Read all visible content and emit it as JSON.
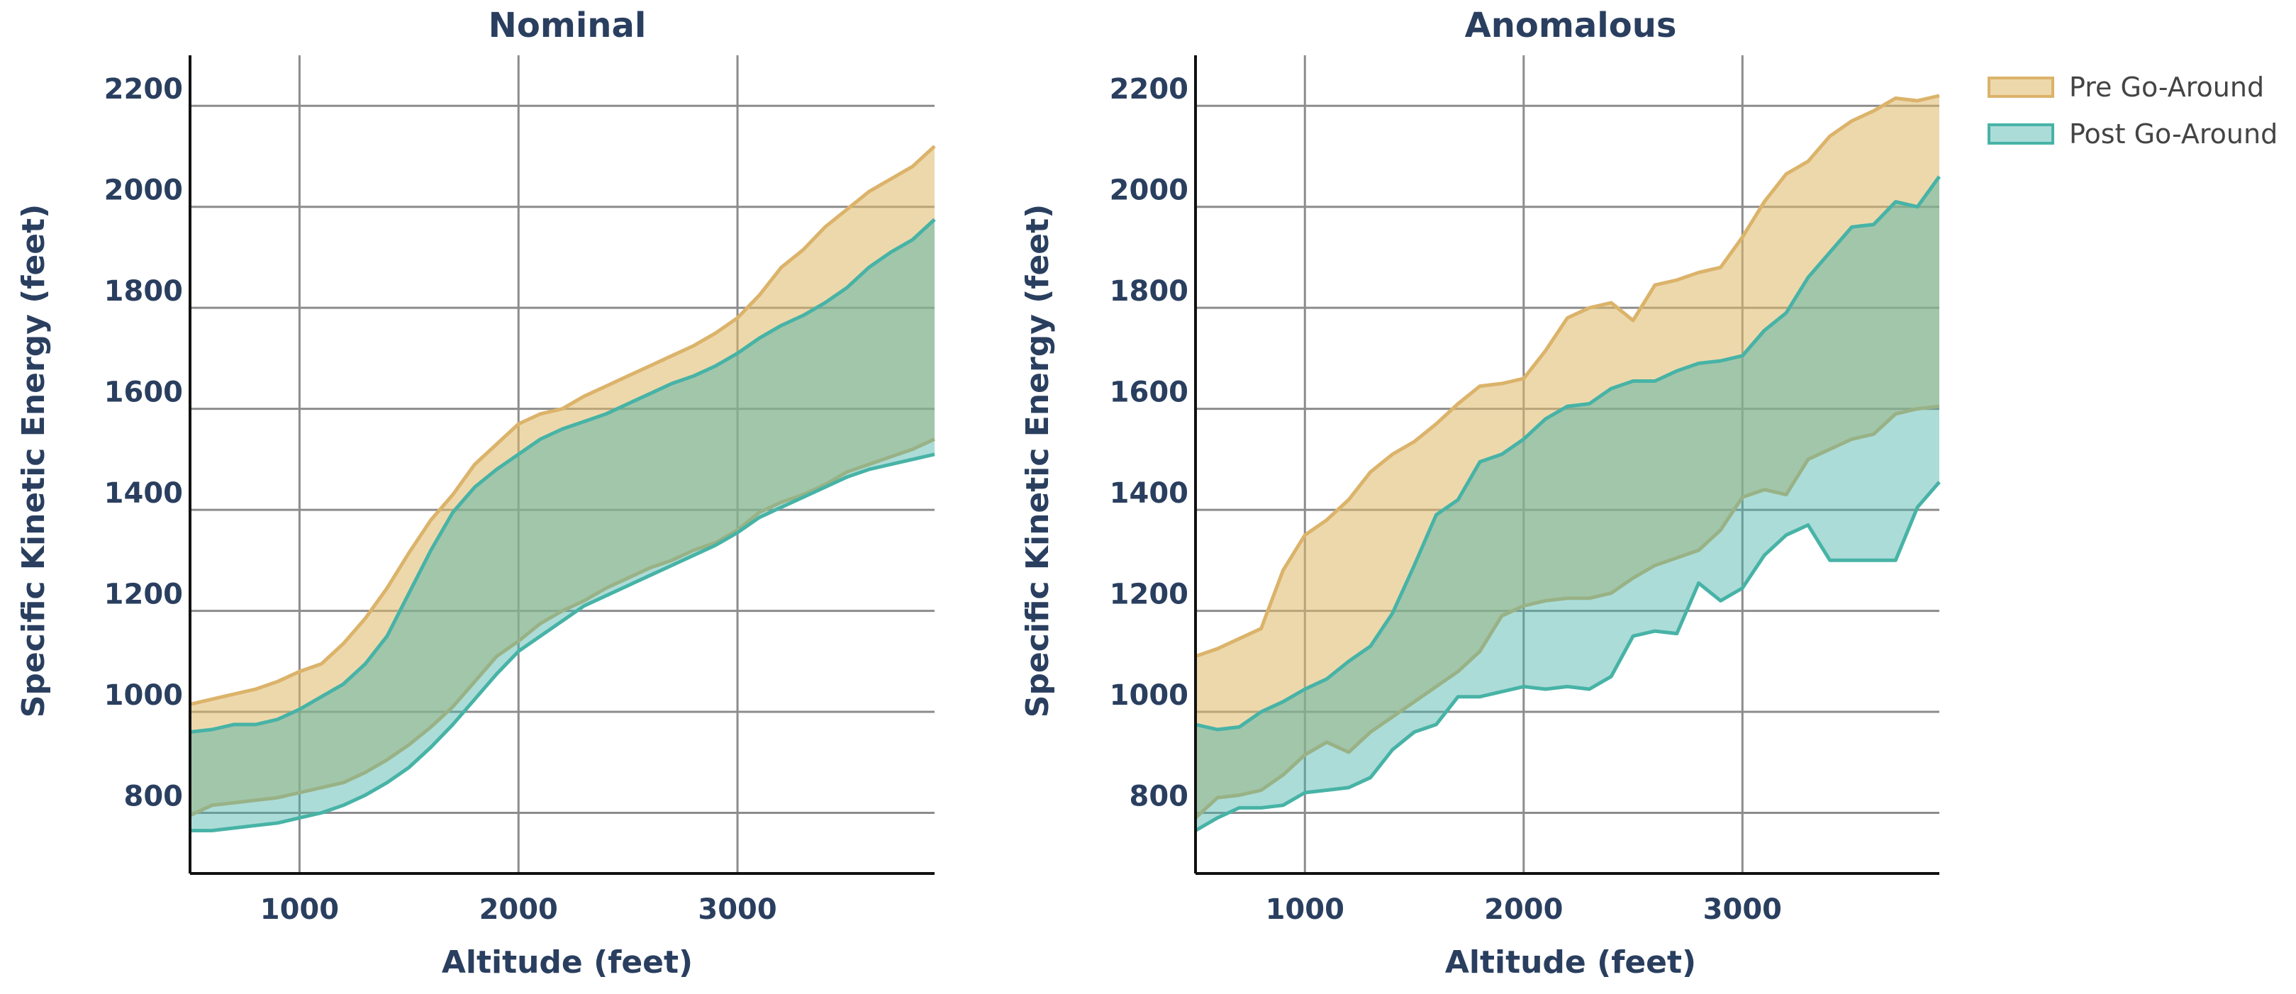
{
  "colors": {
    "pre_fill": "rgba(222,184,104,0.55)",
    "pre_line": "#dbb36a",
    "post_fill": "rgba(72,178,168,0.45)",
    "post_line": "#47b3a6",
    "text": "#2a3f5f"
  },
  "chart_data": [
    {
      "type": "area",
      "title": "Nominal",
      "xlabel": "Altitude (feet)",
      "ylabel": "Specific Kinetic Energy (feet)",
      "xlim": [
        500,
        3900
      ],
      "ylim": [
        680,
        2300
      ],
      "xticks": [
        1000,
        2000,
        3000
      ],
      "xtick_labels": [
        "1000",
        "2000",
        "3000"
      ],
      "yticks": [
        800,
        1000,
        1200,
        1400,
        1600,
        1800,
        2000,
        2200
      ],
      "ytick_labels": [
        "800",
        "1000",
        "1200",
        "1400",
        "1600",
        "1800",
        "2000",
        "2200"
      ],
      "grid": true,
      "series": [
        {
          "name": "Pre Go-Around",
          "x": [
            500,
            600,
            700,
            800,
            900,
            1000,
            1100,
            1200,
            1300,
            1400,
            1500,
            1600,
            1700,
            1800,
            1900,
            2000,
            2100,
            2200,
            2300,
            2400,
            2500,
            2600,
            2700,
            2800,
            2900,
            3000,
            3100,
            3200,
            3300,
            3400,
            3500,
            3600,
            3700,
            3800,
            3900
          ],
          "upper": [
            1015,
            1025,
            1035,
            1045,
            1060,
            1080,
            1095,
            1135,
            1185,
            1245,
            1315,
            1380,
            1430,
            1490,
            1530,
            1570,
            1590,
            1600,
            1625,
            1645,
            1665,
            1685,
            1705,
            1725,
            1750,
            1780,
            1825,
            1880,
            1915,
            1960,
            1995,
            2030,
            2055,
            2080,
            2120
          ],
          "lower": [
            795,
            815,
            820,
            825,
            830,
            840,
            850,
            860,
            880,
            905,
            935,
            970,
            1010,
            1060,
            1110,
            1140,
            1175,
            1200,
            1220,
            1245,
            1265,
            1285,
            1300,
            1320,
            1335,
            1360,
            1395,
            1415,
            1430,
            1450,
            1475,
            1490,
            1505,
            1520,
            1540
          ]
        },
        {
          "name": "Post Go-Around",
          "x": [
            500,
            600,
            700,
            800,
            900,
            1000,
            1100,
            1200,
            1300,
            1400,
            1500,
            1600,
            1700,
            1800,
            1900,
            2000,
            2100,
            2200,
            2300,
            2400,
            2500,
            2600,
            2700,
            2800,
            2900,
            3000,
            3100,
            3200,
            3300,
            3400,
            3500,
            3600,
            3700,
            3800,
            3900
          ],
          "upper": [
            960,
            965,
            975,
            975,
            985,
            1005,
            1030,
            1055,
            1095,
            1150,
            1235,
            1320,
            1395,
            1445,
            1480,
            1510,
            1540,
            1560,
            1575,
            1590,
            1610,
            1630,
            1650,
            1665,
            1685,
            1710,
            1740,
            1765,
            1785,
            1810,
            1840,
            1880,
            1910,
            1935,
            1975
          ],
          "lower": [
            765,
            765,
            770,
            775,
            780,
            790,
            800,
            815,
            835,
            860,
            890,
            930,
            975,
            1025,
            1075,
            1120,
            1150,
            1180,
            1210,
            1230,
            1250,
            1270,
            1290,
            1310,
            1330,
            1355,
            1385,
            1405,
            1425,
            1445,
            1465,
            1480,
            1490,
            1500,
            1510
          ]
        }
      ]
    },
    {
      "type": "area",
      "title": "Anomalous",
      "xlabel": "Altitude (feet)",
      "ylabel": "Specific Kinetic Energy (feet)",
      "xlim": [
        500,
        3900
      ],
      "ylim": [
        680,
        2300
      ],
      "xticks": [
        1000,
        2000,
        3000
      ],
      "xtick_labels": [
        "1000",
        "2000",
        "3000"
      ],
      "yticks": [
        800,
        1000,
        1200,
        1400,
        1600,
        1800,
        2000,
        2200
      ],
      "ytick_labels": [
        "800",
        "1000",
        "1200",
        "1400",
        "1600",
        "1800",
        "2000",
        "2200"
      ],
      "grid": true,
      "legend_position": "top-right",
      "series": [
        {
          "name": "Pre Go-Around",
          "x": [
            500,
            600,
            700,
            800,
            900,
            1000,
            1100,
            1200,
            1300,
            1400,
            1500,
            1600,
            1700,
            1800,
            1900,
            2000,
            2100,
            2200,
            2300,
            2400,
            2500,
            2600,
            2700,
            2800,
            2900,
            3000,
            3100,
            3200,
            3300,
            3400,
            3500,
            3600,
            3700,
            3800,
            3900
          ],
          "upper": [
            1110,
            1125,
            1145,
            1165,
            1280,
            1350,
            1380,
            1420,
            1475,
            1510,
            1535,
            1570,
            1610,
            1645,
            1650,
            1660,
            1715,
            1780,
            1800,
            1810,
            1775,
            1845,
            1855,
            1870,
            1880,
            1940,
            2010,
            2065,
            2090,
            2140,
            2170,
            2190,
            2215,
            2210,
            2220
          ],
          "lower": [
            790,
            830,
            835,
            845,
            875,
            915,
            940,
            920,
            960,
            990,
            1020,
            1050,
            1080,
            1120,
            1190,
            1210,
            1220,
            1225,
            1225,
            1235,
            1265,
            1290,
            1305,
            1320,
            1360,
            1425,
            1440,
            1430,
            1500,
            1520,
            1540,
            1550,
            1590,
            1600,
            1605
          ]
        },
        {
          "name": "Post Go-Around",
          "x": [
            500,
            600,
            700,
            800,
            900,
            1000,
            1100,
            1200,
            1300,
            1400,
            1500,
            1600,
            1700,
            1800,
            1900,
            2000,
            2100,
            2200,
            2300,
            2400,
            2500,
            2600,
            2700,
            2800,
            2900,
            3000,
            3100,
            3200,
            3300,
            3400,
            3500,
            3600,
            3700,
            3800,
            3900
          ],
          "upper": [
            975,
            965,
            970,
            1000,
            1020,
            1045,
            1065,
            1100,
            1130,
            1195,
            1290,
            1390,
            1420,
            1495,
            1510,
            1540,
            1580,
            1605,
            1610,
            1640,
            1655,
            1655,
            1675,
            1690,
            1695,
            1705,
            1755,
            1790,
            1860,
            1910,
            1960,
            1965,
            2010,
            2000,
            2060
          ],
          "lower": [
            765,
            790,
            810,
            810,
            815,
            840,
            845,
            850,
            870,
            925,
            960,
            975,
            1030,
            1030,
            1040,
            1050,
            1045,
            1050,
            1045,
            1070,
            1150,
            1160,
            1155,
            1255,
            1220,
            1245,
            1310,
            1350,
            1370,
            1300,
            1300,
            1300,
            1300,
            1405,
            1455
          ]
        }
      ]
    }
  ]
}
